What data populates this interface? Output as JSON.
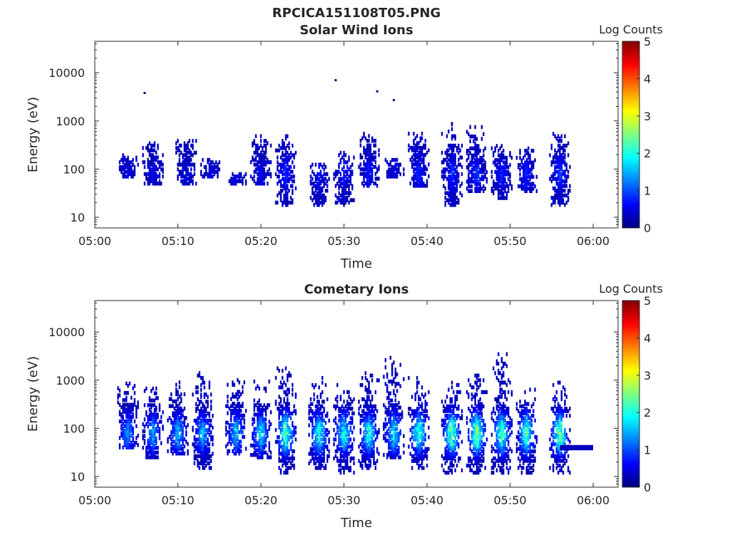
{
  "figure": {
    "title": "RPCICA151108T05.PNG"
  },
  "colors": {
    "colormap": [
      "#00007f",
      "#0000ff",
      "#007fff",
      "#00ffff",
      "#7fff7f",
      "#ffff00",
      "#ff7f00",
      "#ff0000",
      "#7f0000"
    ],
    "axis": "#262626"
  },
  "chart_data": [
    {
      "type": "heatmap",
      "title": "Solar Wind Ions",
      "xlabel": "Time",
      "ylabel": "Energy (eV)",
      "y_scale": "log",
      "xlim": [
        "05:00",
        "06:03"
      ],
      "ylim": [
        6,
        45000
      ],
      "x_ticks": [
        "05:00",
        "05:10",
        "05:20",
        "05:30",
        "05:40",
        "05:50",
        "06:00"
      ],
      "y_ticks": [
        "10",
        "100",
        "1000",
        "10000"
      ],
      "colorbar": {
        "label": "Log Counts",
        "range": [
          0,
          5
        ],
        "ticks": [
          "0",
          "1",
          "2",
          "3",
          "4",
          "5"
        ]
      },
      "bursts": [
        {
          "t": "05:04",
          "e_low": 70,
          "e_high": 210,
          "intensity": 0.5
        },
        {
          "t": "05:07",
          "e_low": 50,
          "e_high": 420,
          "intensity": 0.5
        },
        {
          "t": "05:11",
          "e_low": 50,
          "e_high": 550,
          "intensity": 0.5
        },
        {
          "t": "05:14",
          "e_low": 70,
          "e_high": 160,
          "intensity": 0.5
        },
        {
          "t": "05:17",
          "e_low": 50,
          "e_high": 80,
          "intensity": 0.5
        },
        {
          "t": "05:20",
          "e_low": 50,
          "e_high": 500,
          "intensity": 0.6
        },
        {
          "t": "05:23",
          "e_low": 18,
          "e_high": 500,
          "intensity": 0.8
        },
        {
          "t": "05:27",
          "e_low": 18,
          "e_high": 130,
          "intensity": 0.7
        },
        {
          "t": "05:30",
          "e_low": 18,
          "e_high": 220,
          "intensity": 0.7
        },
        {
          "t": "05:33",
          "e_low": 45,
          "e_high": 600,
          "intensity": 0.7
        },
        {
          "t": "05:36",
          "e_low": 70,
          "e_high": 170,
          "intensity": 0.5
        },
        {
          "t": "05:39",
          "e_low": 45,
          "e_high": 600,
          "intensity": 0.8
        },
        {
          "t": "05:43",
          "e_low": 18,
          "e_high": 900,
          "intensity": 0.9
        },
        {
          "t": "05:46",
          "e_low": 35,
          "e_high": 800,
          "intensity": 0.9
        },
        {
          "t": "05:49",
          "e_low": 25,
          "e_high": 350,
          "intensity": 0.8
        },
        {
          "t": "05:52",
          "e_low": 35,
          "e_high": 300,
          "intensity": 0.8
        },
        {
          "t": "05:56",
          "e_low": 18,
          "e_high": 700,
          "intensity": 0.9
        }
      ],
      "isolated_points": [
        {
          "t": "05:06",
          "e": 3800
        },
        {
          "t": "05:29",
          "e": 7000
        },
        {
          "t": "05:34",
          "e": 4100
        },
        {
          "t": "05:36",
          "e": 2700
        },
        {
          "t": "05:43",
          "e": 900
        }
      ]
    },
    {
      "type": "heatmap",
      "title": "Cometary Ions",
      "xlabel": "Time",
      "ylabel": "Energy (eV)",
      "y_scale": "log",
      "xlim": [
        "05:00",
        "06:03"
      ],
      "ylim": [
        6,
        45000
      ],
      "x_ticks": [
        "05:00",
        "05:10",
        "05:20",
        "05:30",
        "05:40",
        "05:50",
        "06:00"
      ],
      "y_ticks": [
        "10",
        "100",
        "1000",
        "10000"
      ],
      "colorbar": {
        "label": "Log Counts",
        "range": [
          0,
          5
        ],
        "ticks": [
          "0",
          "1",
          "2",
          "3",
          "4",
          "5"
        ]
      },
      "bursts": [
        {
          "t": "05:04",
          "e_low": 40,
          "e_high": 900,
          "intensity": 1.4
        },
        {
          "t": "05:07",
          "e_low": 25,
          "e_high": 800,
          "intensity": 1.5
        },
        {
          "t": "05:10",
          "e_low": 30,
          "e_high": 900,
          "intensity": 1.6
        },
        {
          "t": "05:13",
          "e_low": 15,
          "e_high": 1400,
          "intensity": 1.6
        },
        {
          "t": "05:17",
          "e_low": 30,
          "e_high": 1100,
          "intensity": 1.7
        },
        {
          "t": "05:20",
          "e_low": 25,
          "e_high": 1000,
          "intensity": 1.8
        },
        {
          "t": "05:23",
          "e_low": 12,
          "e_high": 1800,
          "intensity": 2.4
        },
        {
          "t": "05:27",
          "e_low": 15,
          "e_high": 1200,
          "intensity": 2.1
        },
        {
          "t": "05:30",
          "e_low": 12,
          "e_high": 900,
          "intensity": 2.0
        },
        {
          "t": "05:33",
          "e_low": 15,
          "e_high": 1400,
          "intensity": 2.0
        },
        {
          "t": "05:36",
          "e_low": 25,
          "e_high": 3300,
          "intensity": 1.9
        },
        {
          "t": "05:39",
          "e_low": 15,
          "e_high": 1200,
          "intensity": 2.2
        },
        {
          "t": "05:43",
          "e_low": 12,
          "e_high": 1100,
          "intensity": 2.5
        },
        {
          "t": "05:46",
          "e_low": 12,
          "e_high": 1400,
          "intensity": 2.6
        },
        {
          "t": "05:49",
          "e_low": 12,
          "e_high": 3500,
          "intensity": 2.4
        },
        {
          "t": "05:52",
          "e_low": 12,
          "e_high": 700,
          "intensity": 2.3
        },
        {
          "t": "05:56",
          "e_low": 12,
          "e_high": 1400,
          "intensity": 2.5
        }
      ],
      "bands": [
        {
          "t_start": "05:56",
          "t_end": "05:60",
          "e_low": 35,
          "e_high": 45,
          "intensity": 0.3
        }
      ]
    }
  ]
}
